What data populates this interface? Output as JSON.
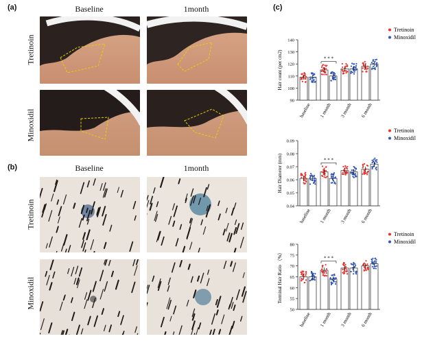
{
  "panels": {
    "a": {
      "label": "(a)",
      "col_headers": [
        "Baseline",
        "1month"
      ],
      "row_headers": [
        "Tretinoin",
        "Minoxidil"
      ]
    },
    "b": {
      "label": "(b)",
      "col_headers": [
        "Baseline",
        "1month"
      ],
      "row_headers": [
        "Tretinoin",
        "Minoxidil"
      ]
    },
    "c": {
      "label": "(c)"
    }
  },
  "colors": {
    "tretinoin": "#e8332f",
    "minoxidil": "#2f55b8",
    "bar_fill": "#ffffff",
    "bar_edge": "#222222"
  },
  "chart_data": [
    {
      "type": "bar",
      "ylabel": "Hair count (per cm2)",
      "xlabel": "",
      "categories": [
        "baseline",
        "1 month",
        "3 month",
        "6 month"
      ],
      "ylim": [
        90,
        140
      ],
      "yticks": [
        90,
        100,
        110,
        120,
        130,
        140
      ],
      "significance": {
        "category": "1 month",
        "label": "* * *"
      },
      "series": [
        {
          "name": "Tretinoin",
          "values": [
            109,
            115,
            116,
            118
          ]
        },
        {
          "name": "Minoxidil",
          "values": [
            109,
            110,
            116,
            120
          ]
        }
      ],
      "legend": "top-right"
    },
    {
      "type": "bar",
      "ylabel": "Hair Diameter (mm)",
      "xlabel": "",
      "categories": [
        "baseline",
        "1 month",
        "3 month",
        "6 month"
      ],
      "ylim": [
        0.04,
        0.09
      ],
      "yticks": [
        "0.04",
        "0.05",
        "0.06",
        "0.07",
        "0.08",
        "0.09"
      ],
      "significance": {
        "category": "1 month",
        "label": "* * *"
      },
      "series": [
        {
          "name": "Tretinoin",
          "values": [
            0.061,
            0.066,
            0.067,
            0.068
          ]
        },
        {
          "name": "Minoxidil",
          "values": [
            0.061,
            0.061,
            0.066,
            0.072
          ]
        }
      ],
      "legend": "top-right"
    },
    {
      "type": "bar",
      "ylabel": "Terminal Hair Ratio （%）",
      "xlabel": "",
      "categories": [
        "baseline",
        "1 month",
        "3 month",
        "6 month"
      ],
      "ylim": [
        50,
        80
      ],
      "yticks": [
        50,
        55,
        60,
        65,
        70,
        75,
        80
      ],
      "significance": {
        "category": "1 month",
        "label": "* * *"
      },
      "series": [
        {
          "name": "Tretinoin",
          "values": [
            65,
            68,
            69,
            70
          ]
        },
        {
          "name": "Minoxidil",
          "values": [
            65,
            64,
            69,
            71
          ]
        }
      ],
      "legend": "top-right"
    }
  ]
}
